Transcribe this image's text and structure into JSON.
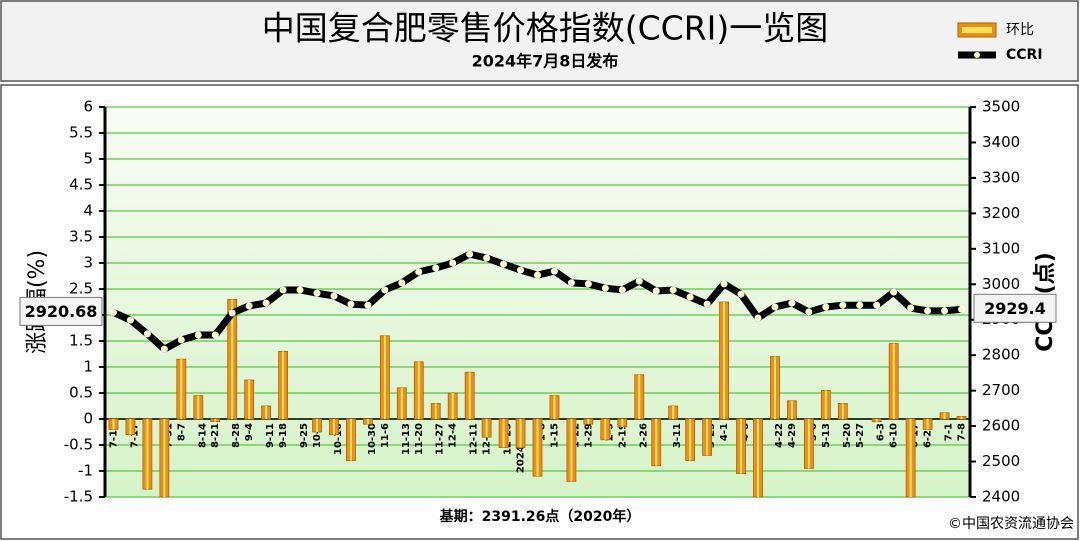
{
  "chart_data": {
    "type": "combo",
    "title": "中国复合肥零售价格指数(CCRI)一览图",
    "subtitle": "2024年7月8日发布",
    "y_label": "涨跌幅(%)",
    "y2_label": "CCRI(点)",
    "base_note": "基期：2391.26点（2020年）",
    "copyright": "©中国农资流通协会",
    "categories": [
      "7-10",
      "7-17",
      "7-24",
      "7-31",
      "8-7",
      "8-14",
      "8-21",
      "8-28",
      "9-4",
      "9-11",
      "9-18",
      "9-25",
      "10-9",
      "10-16",
      "10-23",
      "10-30",
      "11-6",
      "11-13",
      "11-20",
      "11-27",
      "12-4",
      "12-11",
      "12-18",
      "12-25",
      "2024-1-1",
      "1-8",
      "1-15",
      "1-22",
      "1-29",
      "2-5",
      "2-19",
      "2-26",
      "3-4",
      "3-11",
      "3-18",
      "3-25",
      "4-1",
      "4-8",
      "4-15",
      "4-22",
      "4-29",
      "5-6",
      "5-13",
      "5-20",
      "5-27",
      "6-3",
      "6-10",
      "6-17",
      "6-24",
      "7-1",
      "7-8"
    ],
    "series": [
      {
        "name": "环比",
        "type": "bar",
        "color": "#e8901e",
        "axis": "y",
        "values": [
          -0.2,
          -0.3,
          -1.35,
          -1.5,
          1.15,
          0.45,
          -0.05,
          2.3,
          0.75,
          0.25,
          1.3,
          0,
          -0.25,
          -0.3,
          -0.8,
          -0.1,
          1.6,
          0.6,
          1.1,
          0.3,
          0.5,
          0.9,
          -0.35,
          -0.55,
          -0.55,
          -1.1,
          0.45,
          -1.2,
          -0.1,
          -0.4,
          -0.15,
          0.85,
          -0.9,
          0.25,
          -0.8,
          -0.7,
          2.25,
          -1.05,
          -1.5,
          1.2,
          0.35,
          -0.95,
          0.55,
          0.3,
          0,
          -0.05,
          1.45,
          -1.5,
          -0.2,
          0.12,
          0.05
        ]
      },
      {
        "name": "CCRI",
        "type": "line",
        "color": "#000000",
        "axis": "y2",
        "values": [
          2920.68,
          2899,
          2860,
          2817,
          2843,
          2857,
          2857,
          2919,
          2939,
          2947,
          2984,
          2984,
          2975,
          2967,
          2944,
          2941,
          2984,
          3004,
          3035,
          3046,
          3060,
          3085,
          3074,
          3057,
          3040,
          3026,
          3037,
          3004,
          3001,
          2989,
          2984,
          3009,
          2981,
          2984,
          2964,
          2944,
          3001,
          2972,
          2905,
          2936,
          2947,
          2922,
          2936,
          2941,
          2941,
          2941,
          2978,
          2933,
          2925,
          2925,
          2929.4
        ]
      }
    ],
    "ylim": [
      -1.5,
      6
    ],
    "yticks": [
      -1.5,
      -1,
      -0.5,
      0,
      0.5,
      1,
      1.5,
      2,
      2.5,
      3,
      3.5,
      4,
      4.5,
      5,
      5.5,
      6
    ],
    "y2lim": [
      2400,
      3500
    ],
    "y2ticks": [
      2400,
      2500,
      2600,
      2700,
      2800,
      2900,
      3000,
      3100,
      3200,
      3300,
      3400,
      3500
    ],
    "grid": true,
    "grid_color": "#5fc24a",
    "legend": "upper right"
  }
}
